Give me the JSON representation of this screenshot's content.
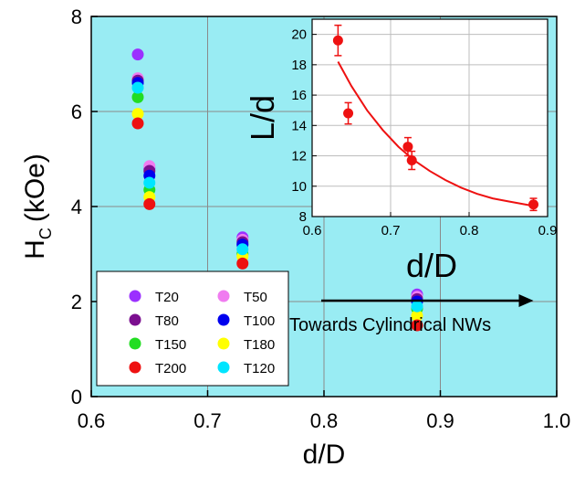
{
  "chart_data": [
    {
      "type": "scatter",
      "xlabel": "d/D",
      "ylabel_main": "H",
      "ylabel_sub": "C",
      "ylabel_unit": "(kOe)",
      "xlim": [
        0.6,
        1.0
      ],
      "ylim": [
        0,
        8
      ],
      "x_ticks": [
        "0.6",
        "0.7",
        "0.8",
        "0.9",
        "1.0"
      ],
      "y_ticks": [
        "0",
        "2",
        "4",
        "6",
        "8"
      ],
      "background_color": "#99ECF3",
      "grid": true,
      "legend_position": "bottom-left",
      "series": [
        {
          "name": "T20",
          "color": "#9B30FF",
          "points": [
            [
              0.64,
              7.2
            ],
            [
              0.65,
              4.8
            ],
            [
              0.73,
              3.35
            ],
            [
              0.88,
              2.15
            ]
          ]
        },
        {
          "name": "T50",
          "color": "#F07CF0",
          "points": [
            [
              0.64,
              6.7
            ],
            [
              0.65,
              4.85
            ],
            [
              0.73,
              3.3
            ],
            [
              0.88,
              2.1
            ]
          ]
        },
        {
          "name": "T80",
          "color": "#7B0F8F",
          "points": [
            [
              0.64,
              6.65
            ],
            [
              0.65,
              4.75
            ],
            [
              0.73,
              3.25
            ],
            [
              0.88,
              2.05
            ]
          ]
        },
        {
          "name": "T100",
          "color": "#0000EE",
          "points": [
            [
              0.64,
              6.6
            ],
            [
              0.65,
              4.65
            ],
            [
              0.73,
              3.2
            ],
            [
              0.88,
              2.0
            ]
          ]
        },
        {
          "name": "T150",
          "color": "#22DD22",
          "points": [
            [
              0.64,
              6.3
            ],
            [
              0.65,
              4.35
            ],
            [
              0.73,
              3.0
            ],
            [
              0.88,
              1.85
            ]
          ]
        },
        {
          "name": "T180",
          "color": "#FFFF00",
          "points": [
            [
              0.64,
              5.95
            ],
            [
              0.65,
              4.2
            ],
            [
              0.73,
              2.95
            ],
            [
              0.88,
              1.7
            ]
          ]
        },
        {
          "name": "T200",
          "color": "#EE1111",
          "points": [
            [
              0.64,
              5.75
            ],
            [
              0.65,
              4.05
            ],
            [
              0.73,
              2.8
            ],
            [
              0.88,
              1.5
            ]
          ]
        },
        {
          "name": "T120",
          "color": "#00E5FF",
          "points": [
            [
              0.64,
              6.5
            ],
            [
              0.65,
              4.5
            ],
            [
              0.73,
              3.1
            ],
            [
              0.88,
              1.9
            ]
          ]
        }
      ],
      "annotation": {
        "text": "Towards Cylindrical NWs",
        "arrow": {
          "from": [
            0.8,
            1.0
          ],
          "to": [
            0.98,
            1.0
          ]
        }
      }
    },
    {
      "type": "scatter",
      "xlabel": "d/D",
      "ylabel": "L/d",
      "xlim": [
        0.6,
        0.9
      ],
      "ylim": [
        8,
        21
      ],
      "x_ticks": [
        "0.6",
        "0.7",
        "0.8",
        "0.9"
      ],
      "y_ticks": [
        "8",
        "10",
        "12",
        "14",
        "16",
        "18",
        "20"
      ],
      "background_color": "#ffffff",
      "grid": true,
      "color": "#EE1111",
      "points": [
        {
          "x": 0.633,
          "y": 19.6,
          "err": 1.0
        },
        {
          "x": 0.646,
          "y": 14.8,
          "err": 0.7
        },
        {
          "x": 0.722,
          "y": 12.6,
          "err": 0.6
        },
        {
          "x": 0.727,
          "y": 11.7,
          "err": 0.6
        },
        {
          "x": 0.882,
          "y": 8.8,
          "err": 0.4
        }
      ],
      "fit_curve": {
        "x": [
          0.633,
          0.65,
          0.67,
          0.69,
          0.71,
          0.73,
          0.75,
          0.77,
          0.79,
          0.81,
          0.83,
          0.85,
          0.882
        ],
        "y": [
          18.2,
          16.6,
          15.0,
          13.7,
          12.6,
          11.7,
          11.0,
          10.4,
          9.9,
          9.5,
          9.2,
          9.0,
          8.7
        ]
      }
    }
  ]
}
